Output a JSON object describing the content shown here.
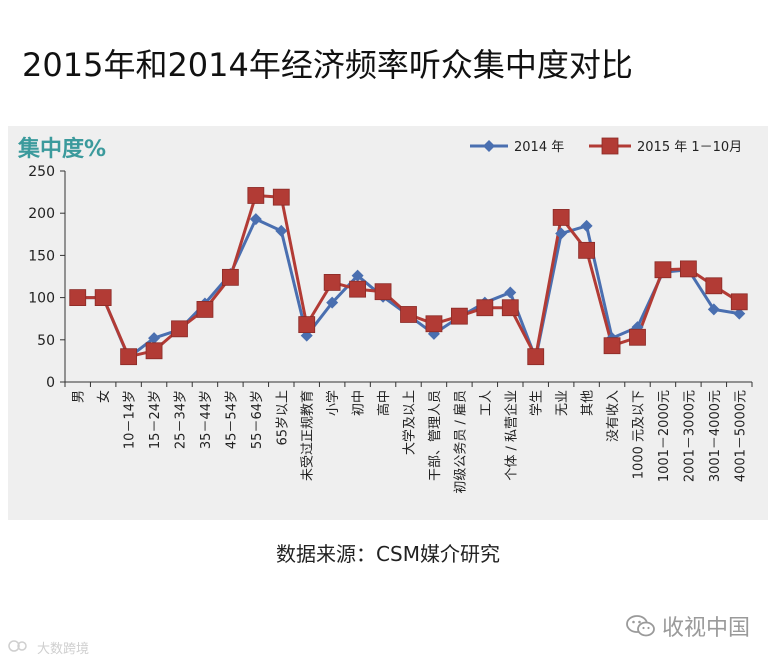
{
  "title": "2015年和2014年经济频率听众集中度对比",
  "source": "数据来源：CSM媒介研究",
  "brand": {
    "name": "收视中国",
    "icon": "wechat-icon"
  },
  "watermark": {
    "text": "大数跨境",
    "icon": "watermark-logo-icon"
  },
  "chart_data": {
    "type": "line",
    "ylabel": "集中度%",
    "ylim": [
      0,
      250
    ],
    "yticks": [
      0,
      50,
      100,
      150,
      200,
      250
    ],
    "grid": false,
    "legend_position": "top-right",
    "categories": [
      "男",
      "女",
      "10－14岁",
      "15－24岁",
      "25－34岁",
      "35－44岁",
      "45－54岁",
      "55－64岁",
      "65岁以上",
      "未受过正规教育",
      "小学",
      "初中",
      "高中",
      "大学及以上",
      "干部、管理人员",
      "初级公务员 / 雇员",
      "工人",
      "个体 / 私营企业",
      "学生",
      "无业",
      "其他",
      "没有收入",
      "1000 元及以下",
      "1001－2000元",
      "2001－3000元",
      "3001－4000元",
      "4001－5000元"
    ],
    "series": [
      {
        "name": "2014 年",
        "color": "#4a6fb0",
        "marker": "diamond",
        "values": [
          100,
          100,
          29,
          52,
          62,
          93,
          128,
          193,
          179,
          55,
          94,
          126,
          101,
          79,
          57,
          77,
          94,
          106,
          28,
          176,
          185,
          52,
          65,
          130,
          133,
          86,
          81
        ]
      },
      {
        "name": "2015 年 1－10月",
        "color": "#b23b35",
        "marker": "square",
        "values": [
          100,
          100,
          30,
          37,
          63,
          86,
          124,
          221,
          219,
          68,
          118,
          110,
          107,
          80,
          69,
          78,
          88,
          88,
          30,
          195,
          156,
          43,
          53,
          133,
          134,
          114,
          95
        ]
      }
    ]
  }
}
